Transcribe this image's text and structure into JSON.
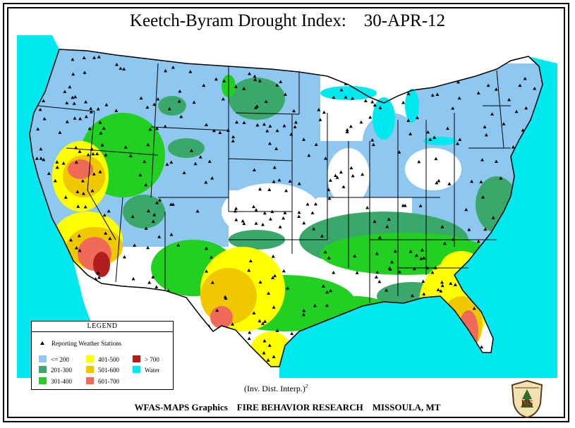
{
  "title": "Keetch-Byram Drought Index:    30-APR-12",
  "interpolation_note": "(Inv. Dist. Interp.)",
  "interpolation_power": "2",
  "footer": "WFAS-MAPS Graphics    FIRE BEHAVIOR RESEARCH    MISSOULA, MT",
  "legend": {
    "title": "LEGEND",
    "stations_label": "Reporting Weather Stations",
    "classes": [
      {
        "label": "<= 200",
        "color": "#8ec8f0"
      },
      {
        "label": "201-300",
        "color": "#3aa86a"
      },
      {
        "label": "301-400",
        "color": "#22d022"
      },
      {
        "label": "401-500",
        "color": "#ffff00"
      },
      {
        "label": "501-600",
        "color": "#f0c800"
      },
      {
        "label": "601-700",
        "color": "#f06a5a"
      },
      {
        "label": "> 700",
        "color": "#b01e1e"
      },
      {
        "label": "Water",
        "color": "#00e8f0"
      }
    ]
  },
  "logo_text": "US",
  "colors": {
    "water": "#00e8f0",
    "land_none": "#ffffff",
    "boundaries": "#000000",
    "stations": "#000000"
  }
}
